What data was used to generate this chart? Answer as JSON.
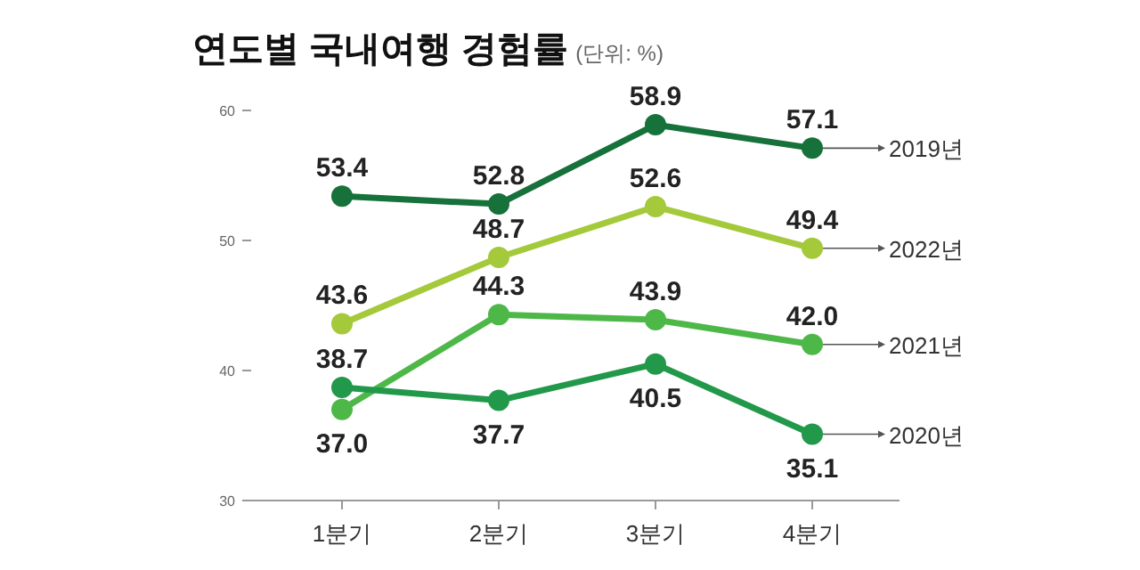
{
  "chart_data": {
    "type": "line",
    "title": "연도별 국내여행 경험률",
    "subtitle": "(단위: %)",
    "categories": [
      "1분기",
      "2분기",
      "3분기",
      "4분기"
    ],
    "series": [
      {
        "name": "2019년",
        "color": "#17713a",
        "values": [
          53.4,
          52.8,
          58.9,
          57.1
        ],
        "value_labels": [
          "53.4",
          "52.8",
          "58.9",
          "57.1"
        ]
      },
      {
        "name": "2022년",
        "color": "#a4c93a",
        "values": [
          43.6,
          48.7,
          52.6,
          49.4
        ],
        "value_labels": [
          "43.6",
          "48.7",
          "52.6",
          "49.4"
        ]
      },
      {
        "name": "2021년",
        "color": "#4db848",
        "values": [
          37.0,
          44.3,
          43.9,
          42.0
        ],
        "value_labels": [
          "37.0",
          "44.3",
          "43.9",
          "42.0"
        ]
      },
      {
        "name": "2020년",
        "color": "#22994a",
        "values": [
          38.7,
          37.7,
          40.5,
          35.1
        ],
        "value_labels": [
          "38.7",
          "37.7",
          "40.5",
          "35.1"
        ]
      }
    ],
    "ylim": [
      30,
      60
    ],
    "yticks": [
      30,
      40,
      50,
      60
    ],
    "marker": "circle",
    "line_style": "solid"
  }
}
